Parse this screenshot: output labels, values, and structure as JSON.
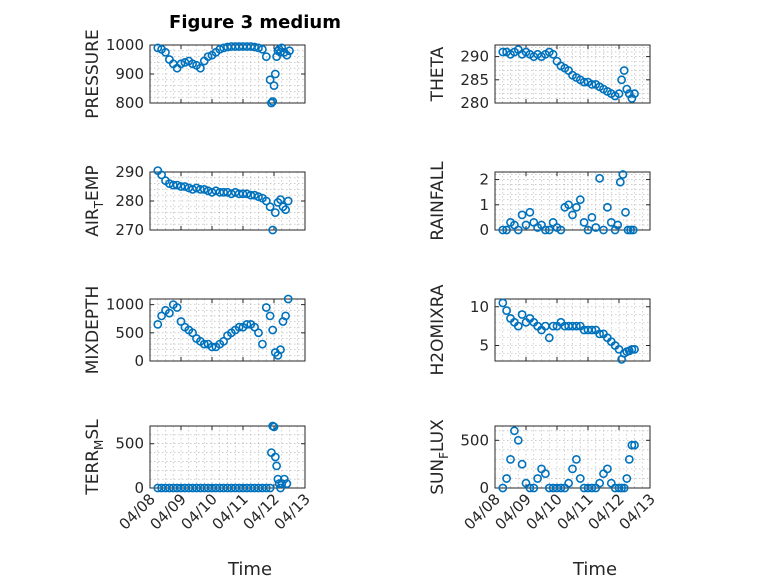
{
  "title": "Figure 3 medium",
  "x_axis_label": "Time",
  "colors": {
    "marker": "#0072BD",
    "axes": "#262626"
  },
  "chart_data": [
    {
      "type": "scatter",
      "name": "pressure",
      "ylabel": "PRESSURE",
      "ylabel_sub": null,
      "ylim": [
        800,
        1000
      ],
      "yticks": [
        800,
        900,
        1000
      ],
      "show_xticklabels": false,
      "x": [
        "04/08 06:00",
        "04/08 09:00",
        "04/08 12:00",
        "04/08 15:00",
        "04/08 18:00",
        "04/08 21:00",
        "04/09 00:00",
        "04/09 03:00",
        "04/09 06:00",
        "04/09 09:00",
        "04/09 12:00",
        "04/09 15:00",
        "04/09 18:00",
        "04/09 21:00",
        "04/10 00:00",
        "04/10 03:00",
        "04/10 06:00",
        "04/10 09:00",
        "04/10 12:00",
        "04/10 15:00",
        "04/10 18:00",
        "04/10 21:00",
        "04/11 00:00",
        "04/11 03:00",
        "04/11 06:00",
        "04/11 09:00",
        "04/11 12:00",
        "04/11 15:00",
        "04/11 18:00",
        "04/11 21:00",
        "04/11 22:00",
        "04/11 23:00",
        "04/12 00:00",
        "04/12 01:00",
        "04/12 02:00",
        "04/12 03:00",
        "04/12 04:00",
        "04/12 05:00",
        "04/12 06:00",
        "04/12 08:00",
        "04/12 10:00",
        "04/12 12:00"
      ],
      "y": [
        990,
        985,
        975,
        950,
        935,
        920,
        935,
        940,
        945,
        935,
        930,
        920,
        945,
        960,
        965,
        975,
        985,
        990,
        993,
        995,
        995,
        995,
        995,
        995,
        995,
        993,
        990,
        985,
        960,
        880,
        800,
        805,
        860,
        900,
        960,
        980,
        985,
        975,
        990,
        975,
        965,
        980
      ]
    },
    {
      "type": "scatter",
      "name": "theta",
      "ylabel": "THETA",
      "ylabel_sub": null,
      "ylim": [
        280,
        292.5
      ],
      "yticks": [
        280,
        285,
        290
      ],
      "show_xticklabels": false,
      "x": [
        "04/08 06:00",
        "04/08 09:00",
        "04/08 12:00",
        "04/08 15:00",
        "04/08 18:00",
        "04/08 21:00",
        "04/09 00:00",
        "04/09 03:00",
        "04/09 06:00",
        "04/09 09:00",
        "04/09 12:00",
        "04/09 15:00",
        "04/09 18:00",
        "04/09 21:00",
        "04/10 00:00",
        "04/10 03:00",
        "04/10 06:00",
        "04/10 09:00",
        "04/10 12:00",
        "04/10 15:00",
        "04/10 18:00",
        "04/10 21:00",
        "04/11 00:00",
        "04/11 03:00",
        "04/11 06:00",
        "04/11 09:00",
        "04/11 12:00",
        "04/11 15:00",
        "04/11 18:00",
        "04/11 21:00",
        "04/12 00:00",
        "04/12 02:00",
        "04/12 04:00",
        "04/12 06:00",
        "04/12 08:00",
        "04/12 10:00",
        "04/12 12:00"
      ],
      "y": [
        291,
        291,
        290.5,
        291,
        291.5,
        290.5,
        291,
        290.5,
        290,
        290.5,
        290,
        290.5,
        291,
        290.5,
        289,
        288,
        287.5,
        287,
        286,
        285.5,
        285,
        284.5,
        284.5,
        284,
        284,
        283.5,
        283,
        282.5,
        282,
        281.5,
        282,
        285,
        287,
        283,
        282,
        281,
        282
      ]
    },
    {
      "type": "scatter",
      "name": "air-temp",
      "ylabel": "AIR",
      "ylabel_sub": "T",
      "ylabel_suffix": "EMP",
      "ylim": [
        270,
        290
      ],
      "yticks": [
        270,
        280,
        290
      ],
      "show_xticklabels": false,
      "x": [
        "04/08 06:00",
        "04/08 09:00",
        "04/08 12:00",
        "04/08 15:00",
        "04/08 18:00",
        "04/08 21:00",
        "04/09 00:00",
        "04/09 03:00",
        "04/09 06:00",
        "04/09 09:00",
        "04/09 12:00",
        "04/09 15:00",
        "04/09 18:00",
        "04/09 21:00",
        "04/10 00:00",
        "04/10 03:00",
        "04/10 06:00",
        "04/10 09:00",
        "04/10 12:00",
        "04/10 15:00",
        "04/10 18:00",
        "04/10 21:00",
        "04/11 00:00",
        "04/11 03:00",
        "04/11 06:00",
        "04/11 09:00",
        "04/11 12:00",
        "04/11 15:00",
        "04/11 18:00",
        "04/11 21:00",
        "04/11 23:00",
        "04/12 01:00",
        "04/12 03:00",
        "04/12 05:00",
        "04/12 07:00",
        "04/12 09:00",
        "04/12 11:00"
      ],
      "y": [
        290.5,
        289,
        287,
        286,
        285.5,
        285.5,
        285,
        285,
        284.5,
        284,
        284.5,
        284,
        284,
        283.5,
        283,
        283.5,
        283,
        283,
        283,
        282.5,
        283,
        282.5,
        282.5,
        282.5,
        282,
        282,
        281.5,
        281,
        280,
        278,
        270,
        276,
        279.5,
        280.5,
        278,
        277,
        280
      ]
    },
    {
      "type": "scatter",
      "name": "rainfall",
      "ylabel": "RAINFALL",
      "ylabel_sub": null,
      "ylim": [
        0,
        2.3
      ],
      "yticks": [
        0,
        1,
        2
      ],
      "show_xticklabels": false,
      "x": [
        "04/08 06:00",
        "04/08 09:00",
        "04/08 12:00",
        "04/08 15:00",
        "04/08 18:00",
        "04/08 21:00",
        "04/09 00:00",
        "04/09 03:00",
        "04/09 06:00",
        "04/09 09:00",
        "04/09 12:00",
        "04/09 15:00",
        "04/09 18:00",
        "04/09 21:00",
        "04/10 00:00",
        "04/10 03:00",
        "04/10 06:00",
        "04/10 09:00",
        "04/10 12:00",
        "04/10 15:00",
        "04/10 18:00",
        "04/10 21:00",
        "04/11 00:00",
        "04/11 03:00",
        "04/11 06:00",
        "04/11 09:00",
        "04/11 12:00",
        "04/11 15:00",
        "04/11 18:00",
        "04/11 21:00",
        "04/11 23:00",
        "04/12 01:00",
        "04/12 03:00",
        "04/12 05:00",
        "04/12 07:00",
        "04/12 09:00",
        "04/12 11:00"
      ],
      "y": [
        0,
        0,
        0.3,
        0.2,
        0,
        0.6,
        0.2,
        0.7,
        0.3,
        0.1,
        0.2,
        0,
        0,
        0.3,
        0.1,
        0,
        0.9,
        1.0,
        0.6,
        0.9,
        1.2,
        0.3,
        0,
        0.5,
        0.1,
        2.05,
        0,
        0.9,
        0.3,
        0,
        0.2,
        1.9,
        2.2,
        0.7,
        0,
        0,
        0
      ]
    },
    {
      "type": "scatter",
      "name": "mixdepth",
      "ylabel": "MIXDEPTH",
      "ylabel_sub": null,
      "ylim": [
        0,
        1100
      ],
      "yticks": [
        0,
        500,
        1000
      ],
      "show_xticklabels": false,
      "x": [
        "04/08 06:00",
        "04/08 09:00",
        "04/08 12:00",
        "04/08 15:00",
        "04/08 18:00",
        "04/08 21:00",
        "04/09 00:00",
        "04/09 03:00",
        "04/09 06:00",
        "04/09 09:00",
        "04/09 12:00",
        "04/09 15:00",
        "04/09 18:00",
        "04/09 21:00",
        "04/10 00:00",
        "04/10 03:00",
        "04/10 06:00",
        "04/10 09:00",
        "04/10 12:00",
        "04/10 15:00",
        "04/10 18:00",
        "04/10 21:00",
        "04/11 00:00",
        "04/11 03:00",
        "04/11 06:00",
        "04/11 09:00",
        "04/11 12:00",
        "04/11 15:00",
        "04/11 18:00",
        "04/11 21:00",
        "04/11 23:00",
        "04/12 01:00",
        "04/12 03:00",
        "04/12 05:00",
        "04/12 07:00",
        "04/12 09:00",
        "04/12 11:00"
      ],
      "y": [
        650,
        800,
        900,
        850,
        1000,
        950,
        700,
        600,
        550,
        500,
        400,
        350,
        300,
        300,
        250,
        250,
        300,
        350,
        450,
        500,
        550,
        600,
        600,
        650,
        650,
        600,
        500,
        300,
        950,
        800,
        550,
        150,
        100,
        200,
        700,
        800,
        1100
      ]
    },
    {
      "type": "scatter",
      "name": "h2o-mixing-ratio",
      "ylabel": "H2OMIXRA",
      "ylabel_sub": null,
      "ylim": [
        3,
        11
      ],
      "yticks": [
        5,
        10
      ],
      "show_xticklabels": false,
      "x": [
        "04/08 06:00",
        "04/08 09:00",
        "04/08 12:00",
        "04/08 15:00",
        "04/08 18:00",
        "04/08 21:00",
        "04/09 00:00",
        "04/09 03:00",
        "04/09 06:00",
        "04/09 09:00",
        "04/09 12:00",
        "04/09 15:00",
        "04/09 18:00",
        "04/09 21:00",
        "04/10 00:00",
        "04/10 03:00",
        "04/10 06:00",
        "04/10 09:00",
        "04/10 12:00",
        "04/10 15:00",
        "04/10 18:00",
        "04/10 21:00",
        "04/11 00:00",
        "04/11 03:00",
        "04/11 06:00",
        "04/11 09:00",
        "04/11 12:00",
        "04/11 15:00",
        "04/11 18:00",
        "04/11 21:00",
        "04/12 00:00",
        "04/12 02:00",
        "04/12 04:00",
        "04/12 06:00",
        "04/12 08:00",
        "04/12 10:00",
        "04/12 12:00"
      ],
      "y": [
        10.5,
        9.5,
        8.5,
        8,
        7.5,
        9,
        8,
        8.5,
        8,
        7.5,
        7,
        7.5,
        6,
        7.5,
        7.5,
        8,
        7.5,
        7.5,
        7.5,
        7.5,
        7.5,
        7,
        7,
        7,
        7,
        6.5,
        6.5,
        6,
        5.5,
        5,
        4.5,
        3.2,
        4,
        4.2,
        4.3,
        4.5,
        4.5
      ]
    },
    {
      "type": "scatter",
      "name": "terrain-msl",
      "ylabel": "TERR",
      "ylabel_sub": "M",
      "ylabel_suffix": "SL",
      "ylim": [
        0,
        700
      ],
      "yticks": [
        0,
        500
      ],
      "show_xticklabels": true,
      "x": [
        "04/08 06:00",
        "04/08 09:00",
        "04/08 12:00",
        "04/08 15:00",
        "04/08 18:00",
        "04/08 21:00",
        "04/09 00:00",
        "04/09 03:00",
        "04/09 06:00",
        "04/09 09:00",
        "04/09 12:00",
        "04/09 15:00",
        "04/09 18:00",
        "04/09 21:00",
        "04/10 00:00",
        "04/10 03:00",
        "04/10 06:00",
        "04/10 09:00",
        "04/10 12:00",
        "04/10 15:00",
        "04/10 18:00",
        "04/10 21:00",
        "04/11 00:00",
        "04/11 03:00",
        "04/11 06:00",
        "04/11 09:00",
        "04/11 12:00",
        "04/11 15:00",
        "04/11 18:00",
        "04/11 21:00",
        "04/11 22:00",
        "04/11 23:00",
        "04/12 00:00",
        "04/12 01:00",
        "04/12 02:00",
        "04/12 03:00",
        "04/12 04:00",
        "04/12 05:00",
        "04/12 06:00",
        "04/12 08:00",
        "04/12 10:00"
      ],
      "y": [
        0,
        0,
        0,
        0,
        0,
        0,
        0,
        0,
        0,
        0,
        0,
        0,
        0,
        0,
        0,
        0,
        0,
        0,
        0,
        0,
        0,
        0,
        0,
        0,
        0,
        0,
        0,
        0,
        0,
        0,
        400,
        700,
        690,
        350,
        250,
        100,
        50,
        0,
        50,
        100,
        50
      ]
    },
    {
      "type": "scatter",
      "name": "sun-flux",
      "ylabel": "SUN",
      "ylabel_sub": "F",
      "ylabel_suffix": "LUX",
      "ylim": [
        0,
        650
      ],
      "yticks": [
        0,
        500
      ],
      "show_xticklabels": true,
      "x": [
        "04/08 06:00",
        "04/08 09:00",
        "04/08 12:00",
        "04/08 15:00",
        "04/08 18:00",
        "04/08 21:00",
        "04/09 00:00",
        "04/09 03:00",
        "04/09 06:00",
        "04/09 09:00",
        "04/09 12:00",
        "04/09 15:00",
        "04/09 18:00",
        "04/09 21:00",
        "04/10 00:00",
        "04/10 03:00",
        "04/10 06:00",
        "04/10 09:00",
        "04/10 12:00",
        "04/10 15:00",
        "04/10 18:00",
        "04/10 21:00",
        "04/11 00:00",
        "04/11 03:00",
        "04/11 06:00",
        "04/11 09:00",
        "04/11 12:00",
        "04/11 15:00",
        "04/11 18:00",
        "04/11 21:00",
        "04/12 00:00",
        "04/12 02:00",
        "04/12 04:00",
        "04/12 06:00",
        "04/12 08:00",
        "04/12 10:00",
        "04/12 12:00"
      ],
      "y": [
        0,
        100,
        300,
        600,
        500,
        250,
        50,
        0,
        0,
        100,
        200,
        150,
        0,
        0,
        0,
        0,
        0,
        50,
        200,
        300,
        100,
        0,
        0,
        0,
        0,
        50,
        150,
        200,
        50,
        0,
        0,
        0,
        0,
        100,
        300,
        450,
        450
      ]
    }
  ],
  "x_axis": {
    "range": [
      "04/08 00:00",
      "04/13 00:00"
    ],
    "tick_labels": [
      "04/08",
      "04/09",
      "04/10",
      "04/11",
      "04/12",
      "04/13"
    ]
  }
}
